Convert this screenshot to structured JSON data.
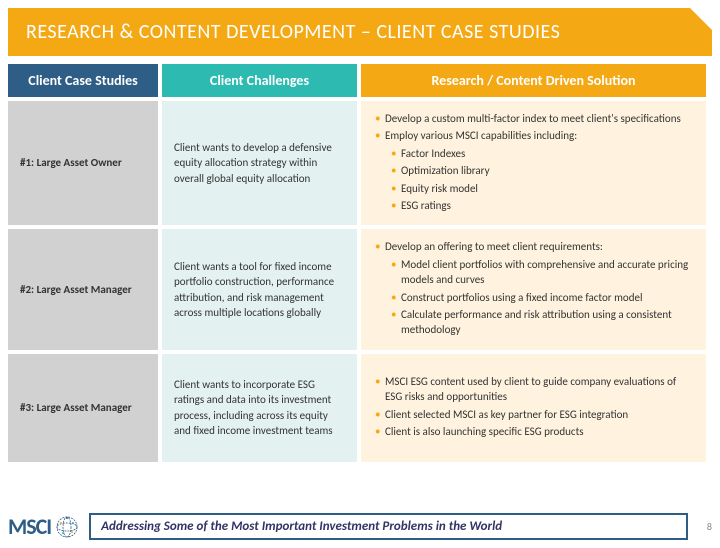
{
  "title": "RESEARCH & CONTENT DEVELOPMENT – CLIENT CASE STUDIES",
  "headers": [
    "Client Case Studies",
    "Client Challenges",
    "Research / Content Driven Solution"
  ],
  "rows": [
    {
      "label": "#1: Large Asset Owner",
      "challenge": "Client wants to develop a defensive equity allocation strategy within overall global equity allocation",
      "solution": [
        {
          "t": "Develop a custom multi-factor index to meet client's specifications",
          "s": 0
        },
        {
          "t": "Employ various MSCI capabilities including:",
          "s": 0
        },
        {
          "t": "Factor Indexes",
          "s": 1
        },
        {
          "t": "Optimization library",
          "s": 1
        },
        {
          "t": "Equity risk model",
          "s": 1
        },
        {
          "t": "ESG ratings",
          "s": 1
        }
      ]
    },
    {
      "label": "#2: Large Asset Manager",
      "challenge": "Client wants a tool for fixed income portfolio construction, performance attribution, and risk management across multiple locations globally",
      "solution": [
        {
          "t": "Develop an offering to meet client requirements:",
          "s": 0
        },
        {
          "t": "Model client portfolios with comprehensive and accurate pricing models and curves",
          "s": 1
        },
        {
          "t": "Construct portfolios using a fixed income factor model",
          "s": 1
        },
        {
          "t": "Calculate performance and risk attribution using a consistent methodology",
          "s": 1
        }
      ]
    },
    {
      "label": "#3: Large Asset Manager",
      "challenge": "Client wants to incorporate ESG ratings and data into its investment process, including across its equity and fixed income investment teams",
      "solution": [
        {
          "t": "MSCI ESG content used by client to guide company evaluations of ESG risks and opportunities",
          "s": 0
        },
        {
          "t": "Client selected MSCI as key partner for ESG integration",
          "s": 0
        },
        {
          "t": "Client is also launching specific ESG products",
          "s": 0
        }
      ]
    }
  ],
  "logo_text": "MSCI",
  "tagline": "Addressing Some of the Most Important Investment Problems in the World",
  "page_number": "8",
  "colors": {
    "orange": "#f4a814",
    "teal": "#2dbab1",
    "navy": "#2e5d85",
    "grey": "#d1d1d1",
    "lightteal": "#e3f2f0",
    "lightorange": "#fff3df"
  }
}
